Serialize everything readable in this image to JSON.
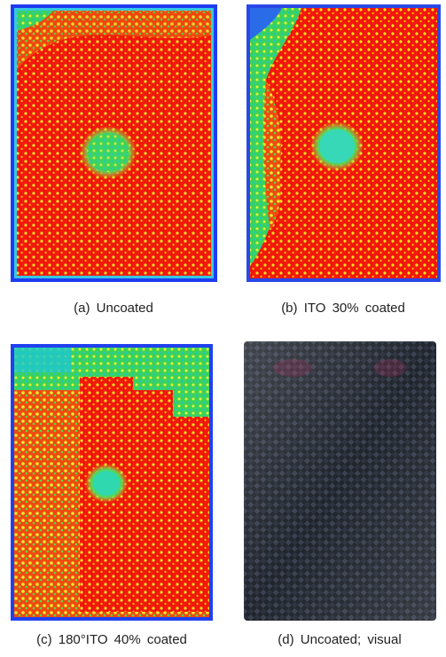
{
  "figure": {
    "panels": [
      {
        "caption": "(a) Uncoated"
      },
      {
        "caption": "(b) ITO 30% coated"
      },
      {
        "caption": "(c) 180°ITO 40% coated"
      },
      {
        "caption": "(d) Uncoated; visual"
      }
    ]
  }
}
